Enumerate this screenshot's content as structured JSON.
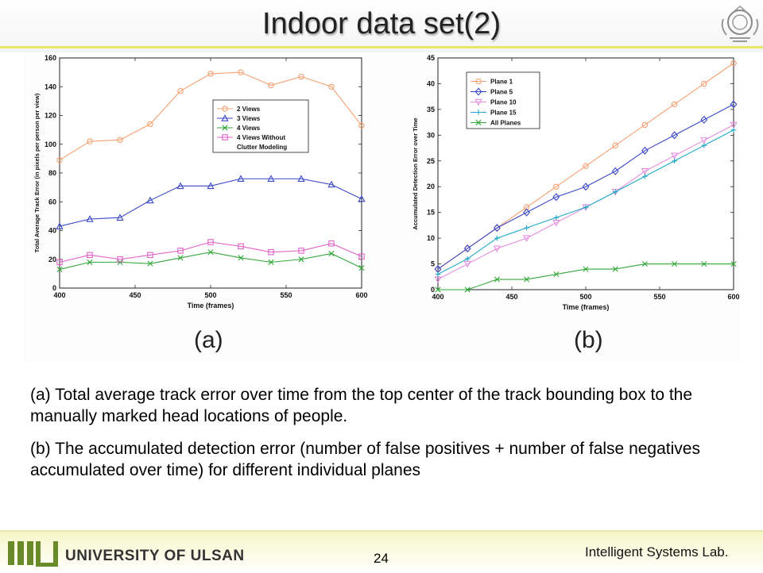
{
  "slide": {
    "title": "Indoor data set(2)",
    "page_number": "24",
    "footer_left": "UNIVERSITY OF ULSAN",
    "footer_right": "Intelligent Systems Lab.",
    "accent": "#e8e86a"
  },
  "subfigures": [
    {
      "label": "(a)"
    },
    {
      "label": "(b)"
    }
  ],
  "captions": [
    "(a) Total average track error over time from the top center of the track bounding box to the manually marked head locations of people.",
    "(b) The accumulated detection error (number of false positives + number of false negatives accumulated over time) for different individual planes"
  ],
  "chart_data": [
    {
      "type": "line",
      "title": "",
      "xlabel": "Time (frames)",
      "ylabel": "Total Average Track Error (in pixels per person per view)",
      "xlim": [
        400,
        600
      ],
      "ylim": [
        0,
        160
      ],
      "xticks": [
        400,
        450,
        500,
        550,
        600
      ],
      "yticks": [
        0,
        20,
        40,
        60,
        80,
        100,
        120,
        140,
        160
      ],
      "legend_position": "right",
      "x": [
        400,
        420,
        440,
        460,
        480,
        500,
        520,
        540,
        560,
        580,
        600
      ],
      "series": [
        {
          "name": "2 Views",
          "color": "#f5a070",
          "marker": "circle",
          "values": [
            89,
            102,
            103,
            114,
            137,
            149,
            150,
            141,
            147,
            140,
            113
          ]
        },
        {
          "name": "3 Views",
          "color": "#3a48c8",
          "marker": "triangle",
          "values": [
            43,
            48,
            49,
            61,
            71,
            71,
            76,
            76,
            76,
            72,
            62
          ]
        },
        {
          "name": "4 Views",
          "color": "#34a83a",
          "marker": "x",
          "values": [
            13,
            18,
            18,
            17,
            21,
            25,
            21,
            18,
            20,
            24,
            14
          ]
        },
        {
          "name": "4 Views Without Clutter Modeling",
          "color": "#e060c8",
          "marker": "square",
          "values": [
            18,
            23,
            20,
            23,
            26,
            32,
            29,
            25,
            26,
            31,
            22
          ]
        }
      ]
    },
    {
      "type": "line",
      "title": "",
      "xlabel": "Time (frames)",
      "ylabel": "Accumulated Detection Error over Time",
      "xlim": [
        400,
        600
      ],
      "ylim": [
        0,
        45
      ],
      "xticks": [
        400,
        450,
        500,
        550,
        600
      ],
      "yticks": [
        0,
        5,
        10,
        15,
        20,
        25,
        30,
        35,
        40,
        45
      ],
      "legend_position": "top-left",
      "x": [
        400,
        420,
        440,
        460,
        480,
        500,
        520,
        540,
        560,
        580,
        600
      ],
      "series": [
        {
          "name": "Plane 1",
          "color": "#f5a070",
          "marker": "circle",
          "values": [
            4,
            8,
            12,
            16,
            20,
            24,
            28,
            32,
            36,
            40,
            44
          ]
        },
        {
          "name": "Plane 5",
          "color": "#3a48c8",
          "marker": "diamond",
          "values": [
            4,
            8,
            12,
            15,
            18,
            20,
            23,
            27,
            30,
            33,
            36
          ]
        },
        {
          "name": "Plane 10",
          "color": "#e58ee0",
          "marker": "triangle-down",
          "values": [
            2,
            5,
            8,
            10,
            13,
            16,
            19,
            23,
            26,
            29,
            32
          ]
        },
        {
          "name": "Plane 15",
          "color": "#20a8c8",
          "marker": "plus",
          "values": [
            3,
            6,
            10,
            12,
            14,
            16,
            19,
            22,
            25,
            28,
            31
          ]
        },
        {
          "name": "All Planes",
          "color": "#34a83a",
          "marker": "x",
          "values": [
            0,
            0,
            2,
            2,
            3,
            4,
            4,
            5,
            5,
            5,
            5
          ]
        }
      ]
    }
  ]
}
